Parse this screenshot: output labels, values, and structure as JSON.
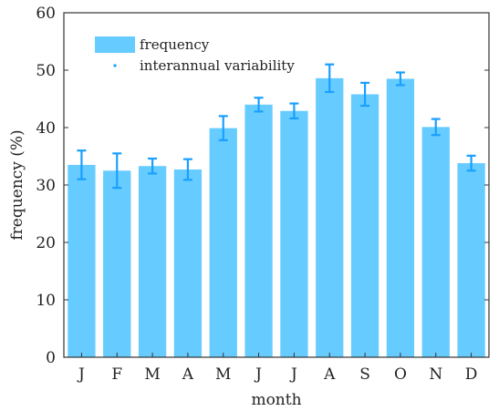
{
  "chart_data": {
    "type": "bar",
    "categories": [
      "J",
      "F",
      "M",
      "A",
      "M",
      "J",
      "J",
      "A",
      "S",
      "O",
      "N",
      "D"
    ],
    "series": [
      {
        "name": "frequency",
        "values": [
          33.5,
          32.5,
          33.3,
          32.7,
          39.9,
          44.0,
          42.9,
          48.6,
          45.8,
          48.5,
          40.1,
          33.8
        ],
        "error": [
          2.5,
          3.0,
          1.3,
          1.8,
          2.1,
          1.2,
          1.3,
          2.4,
          2.0,
          1.1,
          1.4,
          1.3
        ],
        "error_name": "interannual variability"
      }
    ],
    "xlabel": "month",
    "ylabel": "frequency (%)",
    "ylim": [
      0,
      60
    ],
    "yticks": [
      0,
      10,
      20,
      30,
      40,
      50,
      60
    ],
    "grid": false,
    "legend_position": "top-left",
    "colors": {
      "bar": "#66ccff",
      "error": "#1a9fff",
      "axis": "#333333"
    }
  }
}
